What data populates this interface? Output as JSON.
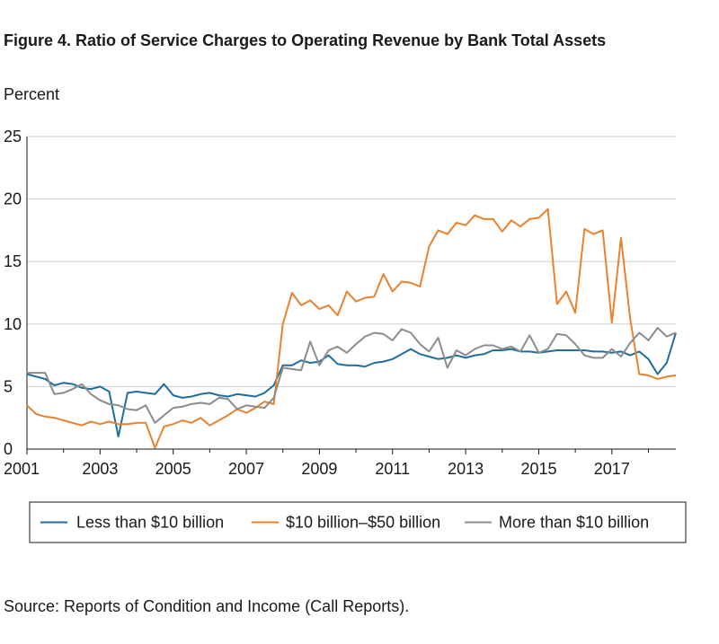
{
  "title": "Figure 4. Ratio of Service Charges to Operating Revenue by Bank Total Assets",
  "ylabel": "Percent",
  "source": "Source: Reports of Condition and Income (Call Reports).",
  "chart_data": {
    "type": "line",
    "xlabel": "",
    "ylabel": "Percent",
    "xlim": [
      2001,
      2018.75
    ],
    "ylim": [
      0,
      25
    ],
    "x_ticks": [
      "2001",
      "2003",
      "2005",
      "2007",
      "2009",
      "2011",
      "2013",
      "2015",
      "2017"
    ],
    "y_ticks": [
      "0",
      "5",
      "10",
      "15",
      "20",
      "25"
    ],
    "grid": true,
    "legend": "bottom",
    "series": [
      {
        "name": "Less than $10 billion",
        "color": "#1f6e9c",
        "x": [
          2001.0,
          2001.25,
          2001.5,
          2001.75,
          2002.0,
          2002.25,
          2002.5,
          2002.75,
          2003.0,
          2003.25,
          2003.5,
          2003.75,
          2004.0,
          2004.25,
          2004.5,
          2004.75,
          2005.0,
          2005.25,
          2005.5,
          2005.75,
          2006.0,
          2006.25,
          2006.5,
          2006.75,
          2007.0,
          2007.25,
          2007.5,
          2007.75,
          2008.0,
          2008.25,
          2008.5,
          2008.75,
          2009.0,
          2009.25,
          2009.5,
          2009.75,
          2010.0,
          2010.25,
          2010.5,
          2010.75,
          2011.0,
          2011.25,
          2011.5,
          2011.75,
          2012.0,
          2012.25,
          2012.5,
          2012.75,
          2013.0,
          2013.25,
          2013.5,
          2013.75,
          2014.0,
          2014.25,
          2014.5,
          2014.75,
          2015.0,
          2015.25,
          2015.5,
          2015.75,
          2016.0,
          2016.25,
          2016.5,
          2016.75,
          2017.0,
          2017.25,
          2017.5,
          2017.75,
          2018.0,
          2018.25,
          2018.5,
          2018.75
        ],
        "y": [
          6.0,
          5.8,
          5.6,
          5.1,
          5.3,
          5.2,
          4.9,
          4.8,
          5.0,
          4.6,
          1.0,
          4.5,
          4.6,
          4.5,
          4.4,
          5.2,
          4.3,
          4.1,
          4.2,
          4.4,
          4.5,
          4.3,
          4.2,
          4.4,
          4.3,
          4.2,
          4.5,
          5.1,
          6.7,
          6.7,
          7.1,
          6.9,
          7.0,
          7.5,
          6.8,
          6.7,
          6.7,
          6.6,
          6.9,
          7.0,
          7.2,
          7.6,
          8.0,
          7.6,
          7.4,
          7.2,
          7.3,
          7.5,
          7.3,
          7.5,
          7.6,
          7.9,
          7.9,
          8.0,
          7.8,
          7.8,
          7.7,
          7.8,
          7.9,
          7.9,
          7.9,
          7.9,
          7.8,
          7.8,
          7.7,
          7.8,
          7.5,
          7.8,
          7.2,
          6.0,
          6.9,
          9.3
        ]
      },
      {
        "name": "$10 billion–$50 billion",
        "color": "#e8822e",
        "x": [
          2001.0,
          2001.25,
          2001.5,
          2001.75,
          2002.0,
          2002.25,
          2002.5,
          2002.75,
          2003.0,
          2003.25,
          2003.5,
          2003.75,
          2004.0,
          2004.25,
          2004.5,
          2004.75,
          2005.0,
          2005.25,
          2005.5,
          2005.75,
          2006.0,
          2006.25,
          2006.5,
          2006.75,
          2007.0,
          2007.25,
          2007.5,
          2007.75,
          2008.0,
          2008.25,
          2008.5,
          2008.75,
          2009.0,
          2009.25,
          2009.5,
          2009.75,
          2010.0,
          2010.25,
          2010.5,
          2010.75,
          2011.0,
          2011.25,
          2011.5,
          2011.75,
          2012.0,
          2012.25,
          2012.5,
          2012.75,
          2013.0,
          2013.25,
          2013.5,
          2013.75,
          2014.0,
          2014.25,
          2014.5,
          2014.75,
          2015.0,
          2015.25,
          2015.5,
          2015.75,
          2016.0,
          2016.25,
          2016.5,
          2016.75,
          2017.0,
          2017.25,
          2017.5,
          2017.75,
          2018.0,
          2018.25,
          2018.5,
          2018.75
        ],
        "y": [
          3.5,
          2.8,
          2.6,
          2.5,
          2.3,
          2.1,
          1.9,
          2.2,
          2.0,
          2.2,
          2.0,
          2.0,
          2.1,
          2.1,
          0.1,
          1.8,
          2.0,
          2.3,
          2.1,
          2.5,
          1.9,
          2.3,
          2.7,
          3.2,
          2.9,
          3.3,
          3.8,
          3.6,
          10.0,
          12.5,
          11.5,
          11.9,
          11.2,
          11.5,
          10.7,
          12.6,
          11.8,
          12.1,
          12.2,
          14.0,
          12.6,
          13.4,
          13.3,
          13.0,
          16.2,
          17.5,
          17.2,
          18.1,
          17.9,
          18.7,
          18.4,
          18.4,
          17.4,
          18.3,
          17.8,
          18.4,
          18.5,
          19.2,
          11.6,
          12.6,
          10.9,
          17.6,
          17.2,
          17.5,
          10.1,
          16.9,
          10.4,
          6.0,
          5.9,
          5.6,
          5.8,
          5.9
        ]
      },
      {
        "name": "More than $10 billion",
        "color": "#8c8c8c",
        "x": [
          2001.0,
          2001.25,
          2001.5,
          2001.75,
          2002.0,
          2002.25,
          2002.5,
          2002.75,
          2003.0,
          2003.25,
          2003.5,
          2003.75,
          2004.0,
          2004.25,
          2004.5,
          2004.75,
          2005.0,
          2005.25,
          2005.5,
          2005.75,
          2006.0,
          2006.25,
          2006.5,
          2006.75,
          2007.0,
          2007.25,
          2007.5,
          2007.75,
          2008.0,
          2008.25,
          2008.5,
          2008.75,
          2009.0,
          2009.25,
          2009.5,
          2009.75,
          2010.0,
          2010.25,
          2010.5,
          2010.75,
          2011.0,
          2011.25,
          2011.5,
          2011.75,
          2012.0,
          2012.25,
          2012.5,
          2012.75,
          2013.0,
          2013.25,
          2013.5,
          2013.75,
          2014.0,
          2014.25,
          2014.5,
          2014.75,
          2015.0,
          2015.25,
          2015.5,
          2015.75,
          2016.0,
          2016.25,
          2016.5,
          2016.75,
          2017.0,
          2017.25,
          2017.5,
          2017.75,
          2018.0,
          2018.25,
          2018.5,
          2018.75
        ],
        "y": [
          6.1,
          6.1,
          6.1,
          4.4,
          4.5,
          4.8,
          5.2,
          4.4,
          3.9,
          3.6,
          3.5,
          3.2,
          3.1,
          3.5,
          2.1,
          2.7,
          3.3,
          3.4,
          3.6,
          3.7,
          3.6,
          4.1,
          4.0,
          3.2,
          3.5,
          3.4,
          3.3,
          4.1,
          6.5,
          6.4,
          6.3,
          8.6,
          6.7,
          7.9,
          8.2,
          7.7,
          8.4,
          9.0,
          9.3,
          9.2,
          8.7,
          9.6,
          9.3,
          8.4,
          7.8,
          8.9,
          6.5,
          7.9,
          7.5,
          8.0,
          8.3,
          8.3,
          8.0,
          8.2,
          7.8,
          9.1,
          7.7,
          8.0,
          9.2,
          9.1,
          8.4,
          7.5,
          7.3,
          7.3,
          8.0,
          7.4,
          8.5,
          9.3,
          8.7,
          9.7,
          9.0,
          9.3
        ]
      }
    ]
  }
}
